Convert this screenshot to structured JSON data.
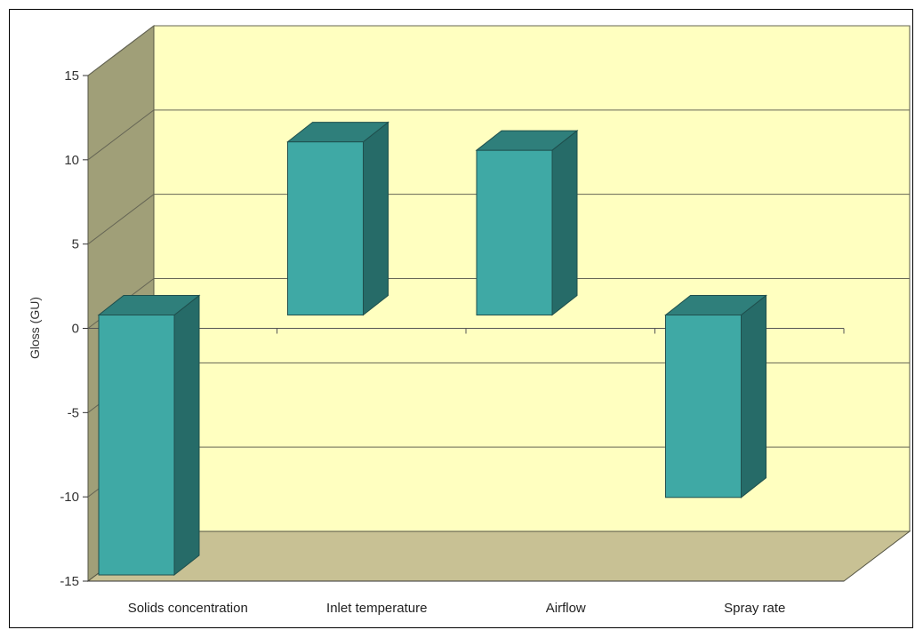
{
  "chart_data": {
    "type": "bar",
    "title": "",
    "xlabel": "",
    "ylabel": "Gloss (GU)",
    "categories": [
      "Solids concentration",
      "Inlet temperature",
      "Airflow",
      "Spray rate"
    ],
    "values": [
      -14,
      11.7,
      11.2,
      -9.4
    ],
    "ylim": [
      -15,
      15
    ],
    "yticks": [
      -15,
      -10,
      -5,
      0,
      5,
      10,
      15
    ],
    "grid": true,
    "legend": "none",
    "three_d": true,
    "colors": {
      "bar_front": "#3fa9a5",
      "bar_side": "#266b68",
      "bar_top": "#2f7f7b",
      "back_wall": "#ffffc0",
      "side_wall": "#a09f78",
      "floor": "#c8c194",
      "gridline": "#666655"
    }
  }
}
